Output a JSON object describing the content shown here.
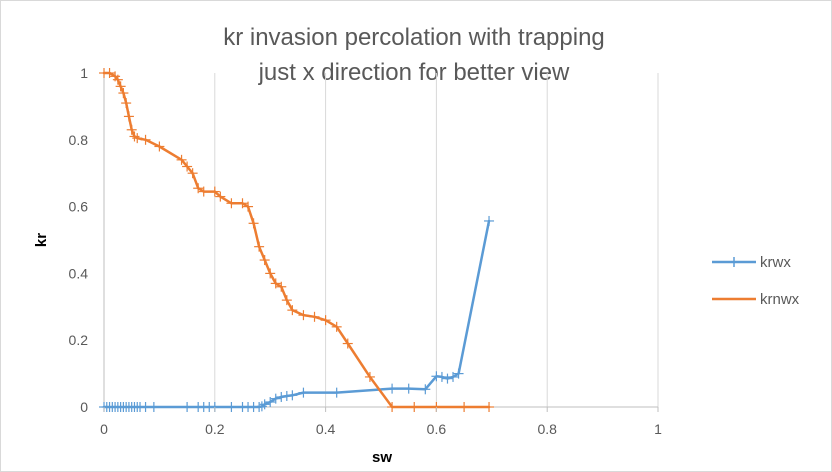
{
  "chart_data": {
    "type": "line",
    "title": "kr invasion percolation with trapping",
    "subtitle": "just x direction for better view",
    "xlabel": "sw",
    "ylabel": "kr",
    "xlim": [
      0,
      1
    ],
    "ylim": [
      0,
      1
    ],
    "xticks": [
      "0",
      "0.2",
      "0.4",
      "0.6",
      "0.8",
      "1"
    ],
    "yticks": [
      "0",
      "0.2",
      "0.4",
      "0.6",
      "0.8",
      "1"
    ],
    "grid": "vertical",
    "legend_position": "right",
    "series": [
      {
        "name": "krwx",
        "color": "#5b9bd5",
        "marker": "plus",
        "x": [
          0,
          0.005,
          0.01,
          0.015,
          0.02,
          0.025,
          0.03,
          0.035,
          0.04,
          0.045,
          0.05,
          0.055,
          0.06,
          0.065,
          0.075,
          0.09,
          0.15,
          0.17,
          0.18,
          0.19,
          0.2,
          0.23,
          0.25,
          0.26,
          0.27,
          0.28,
          0.285,
          0.29,
          0.3,
          0.31,
          0.32,
          0.33,
          0.34,
          0.36,
          0.42,
          0.52,
          0.55,
          0.58,
          0.6,
          0.61,
          0.62,
          0.63,
          0.64,
          0.695
        ],
        "y": [
          0,
          0,
          0,
          0,
          0,
          0,
          0,
          0,
          0,
          0,
          0,
          0,
          0,
          0,
          0,
          0,
          0,
          0,
          0,
          0,
          0,
          0,
          0,
          0,
          0,
          0,
          0.002,
          0.008,
          0.015,
          0.025,
          0.03,
          0.033,
          0.035,
          0.043,
          0.043,
          0.055,
          0.055,
          0.053,
          0.092,
          0.09,
          0.085,
          0.09,
          0.1,
          0.557
        ]
      },
      {
        "name": "krnwx",
        "color": "#ed7d31",
        "marker": "plus",
        "x": [
          0,
          0.01,
          0.02,
          0.025,
          0.03,
          0.035,
          0.04,
          0.045,
          0.05,
          0.055,
          0.06,
          0.075,
          0.1,
          0.14,
          0.15,
          0.16,
          0.17,
          0.18,
          0.2,
          0.21,
          0.23,
          0.25,
          0.26,
          0.27,
          0.28,
          0.29,
          0.3,
          0.31,
          0.32,
          0.33,
          0.34,
          0.36,
          0.38,
          0.4,
          0.42,
          0.44,
          0.48,
          0.52,
          0.56,
          0.6,
          0.65,
          0.695
        ],
        "y": [
          1,
          1,
          0.99,
          0.98,
          0.96,
          0.94,
          0.91,
          0.87,
          0.83,
          0.81,
          0.805,
          0.8,
          0.78,
          0.74,
          0.72,
          0.7,
          0.655,
          0.645,
          0.645,
          0.63,
          0.61,
          0.61,
          0.6,
          0.55,
          0.48,
          0.44,
          0.4,
          0.37,
          0.36,
          0.32,
          0.29,
          0.275,
          0.27,
          0.26,
          0.24,
          0.19,
          0.09,
          0,
          0,
          0,
          0,
          0
        ]
      }
    ]
  }
}
